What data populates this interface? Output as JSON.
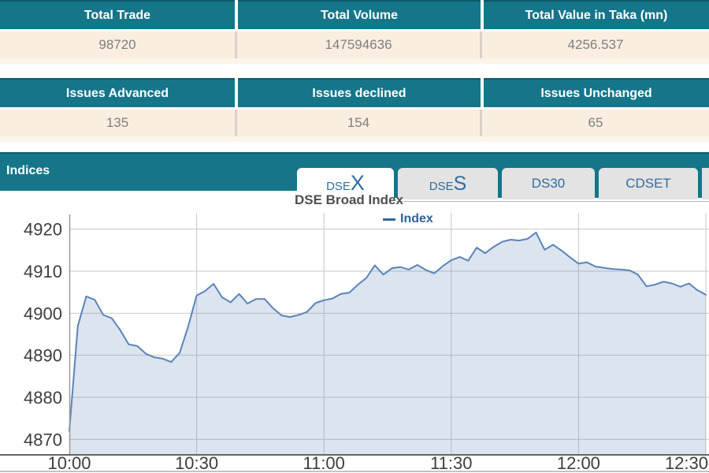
{
  "summary_table": {
    "headers": [
      "Total Trade",
      "Total Volume",
      "Total Value in Taka (mn)"
    ],
    "values": [
      "98720",
      "147594636",
      "4256.537"
    ]
  },
  "issues_table": {
    "headers": [
      "Issues Advanced",
      "Issues declined",
      "Issues Unchanged"
    ],
    "values": [
      "135",
      "154",
      "65"
    ]
  },
  "indices": {
    "section_label": "Indices",
    "tabs": [
      {
        "label_prefix": "DSE",
        "label_suffix": "X",
        "active": true
      },
      {
        "label_prefix": "DSE",
        "label_suffix": "S",
        "active": false
      },
      {
        "label": "DS30",
        "active": false
      },
      {
        "label": "CDSET",
        "active": false
      }
    ],
    "chart_title": "DSE Broad Index",
    "legend_label": "Index"
  },
  "colors": {
    "teal_header": "#15768a",
    "teal_dark_border": "#0b5b6c",
    "cream_row": "#faeee1",
    "value_text": "#7f7f7f",
    "tab_text_blue": "#2e6da4",
    "grid_line": "#c9c9c9",
    "axis_line": "#666666",
    "y_axis_line": "#999999",
    "axis_label": "#3d3d3d"
  },
  "chart_data": {
    "type": "area",
    "title": "DSE Broad Index",
    "legend": [
      "Index"
    ],
    "legend_position": "top-center",
    "grid": true,
    "line_color": "#5b84b8",
    "fill_color": "#5b84b8",
    "fill_opacity": 0.22,
    "x_ticks": [
      "10:00",
      "10:30",
      "11:00",
      "11:30",
      "12:00",
      "12:30"
    ],
    "x_tick_minutes": [
      0,
      30,
      60,
      90,
      120,
      150
    ],
    "y_ticks": [
      4870,
      4880,
      4890,
      4900,
      4910,
      4920
    ],
    "x_range_minutes": [
      0,
      150
    ],
    "y_range": [
      4866.5,
      4923.5
    ],
    "x_start_label": "10:00",
    "x_step_minutes": 2,
    "x_minutes": [
      0,
      2,
      4,
      6,
      8,
      10,
      12,
      14,
      16,
      18,
      20,
      22,
      24,
      26,
      28,
      30,
      32,
      34,
      36,
      38,
      40,
      42,
      44,
      46,
      48,
      50,
      52,
      54,
      56,
      58,
      60,
      62,
      64,
      66,
      68,
      70,
      72,
      74,
      76,
      78,
      80,
      82,
      84,
      86,
      88,
      90,
      92,
      94,
      96,
      98,
      100,
      102,
      104,
      106,
      108,
      110,
      112,
      114,
      116,
      118,
      120,
      122,
      124,
      126,
      128,
      130,
      132,
      134,
      136,
      138,
      140,
      142,
      144,
      146,
      148,
      150
    ],
    "values": [
      4872.0,
      4897.0,
      4904.0,
      4903.2,
      4899.6,
      4898.8,
      4896.0,
      4892.6,
      4892.2,
      4890.4,
      4889.5,
      4889.2,
      4888.4,
      4890.6,
      4896.8,
      4904.2,
      4905.3,
      4907.0,
      4903.8,
      4902.6,
      4904.6,
      4902.3,
      4903.4,
      4903.4,
      4901.2,
      4899.5,
      4899.1,
      4899.6,
      4900.3,
      4902.4,
      4903.1,
      4903.5,
      4904.6,
      4904.9,
      4906.8,
      4908.4,
      4911.4,
      4909.2,
      4910.7,
      4911.0,
      4910.4,
      4911.5,
      4910.3,
      4909.5,
      4911.2,
      4912.6,
      4913.4,
      4912.5,
      4915.6,
      4914.3,
      4915.8,
      4917.0,
      4917.5,
      4917.3,
      4917.7,
      4919.2,
      4915.1,
      4916.3,
      4914.9,
      4913.3,
      4911.8,
      4912.1,
      4911.1,
      4910.8,
      4910.5,
      4910.4,
      4910.2,
      4909.2,
      4906.4,
      4906.8,
      4907.5,
      4907.1,
      4906.3,
      4907.1,
      4905.5,
      4904.4
    ]
  }
}
